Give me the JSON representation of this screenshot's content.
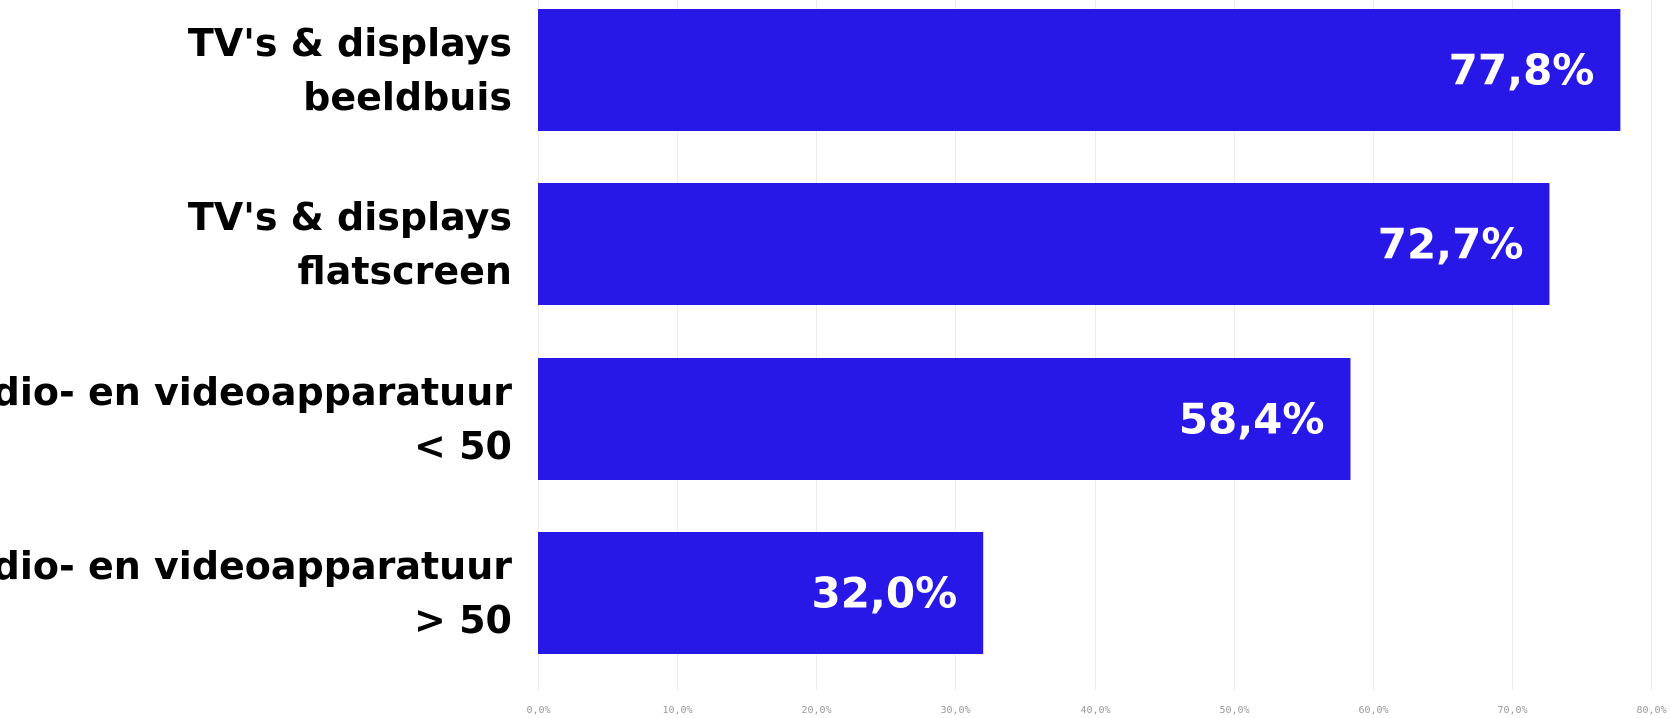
{
  "chart_data": {
    "type": "bar",
    "orientation": "horizontal",
    "categories": [
      [
        "TV's & displays",
        "beeldbuis"
      ],
      [
        "TV's & displays",
        "flatscreen"
      ],
      [
        "Audio- en videoapparatuur",
        "< 50"
      ],
      [
        "Audio- en videoapparatuur",
        "> 50"
      ]
    ],
    "values": [
      77.8,
      72.7,
      58.4,
      32.0
    ],
    "value_labels": [
      "77,8%",
      "72,7%",
      "58,4%",
      "32,0%"
    ],
    "xlim": [
      0,
      80
    ],
    "x_ticks": [
      0,
      10,
      20,
      30,
      40,
      50,
      60,
      70,
      80
    ],
    "x_tick_labels": [
      "0,0%",
      "10,0%",
      "20,0%",
      "30,0%",
      "40,0%",
      "50,0%",
      "60,0%",
      "70,0%",
      "80,0%"
    ],
    "grid": true,
    "bar_color": "#2818e8",
    "value_label_color": "#ffffff",
    "grid_color": "#ececec"
  }
}
